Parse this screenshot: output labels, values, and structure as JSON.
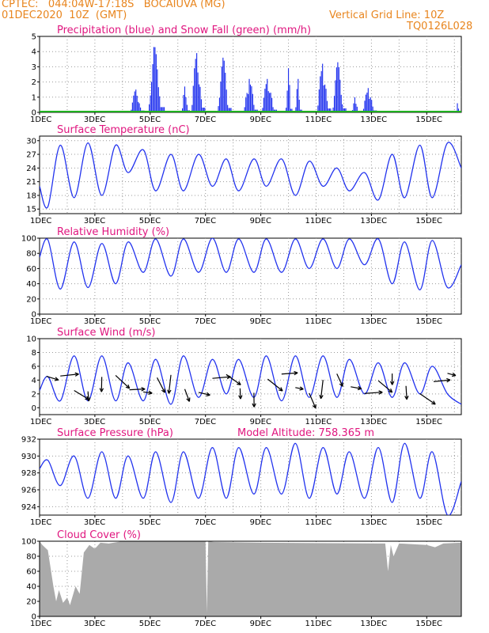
{
  "header": {
    "line1": "CPTEC:   044:04W-17:18S   BOCAIUVA (MG)",
    "line2": "01DEC2020  10Z  (GMT)",
    "grid_note": "Vertical Grid Line: 10Z",
    "code": "TQ0126L028"
  },
  "chart_data": [
    {
      "id": "precip",
      "type": "bar",
      "title": "Precipitation (blue) and Snow Fall (green) (mm/h)",
      "ylim": [
        0,
        5
      ],
      "yticks": [
        "0",
        "1",
        "2",
        "3",
        "4",
        "5"
      ],
      "x_ticks": [
        "1DEC",
        "3DEC",
        "5DEC",
        "7DEC",
        "9DEC",
        "11DEC",
        "13DEC",
        "15DEC"
      ],
      "x_range_days": [
        0,
        15.25
      ],
      "series": [
        {
          "color": "#2233ee",
          "rain_events": [
            {
              "t0": 3.3,
              "t1": 3.8,
              "peak": 1.5
            },
            {
              "t0": 3.95,
              "t1": 4.55,
              "peak": 4.3
            },
            {
              "t0": 5.15,
              "t1": 5.45,
              "peak": 1.7
            },
            {
              "t0": 5.5,
              "t1": 6.0,
              "peak": 3.9
            },
            {
              "t0": 6.45,
              "t1": 6.95,
              "peak": 3.6
            },
            {
              "t0": 7.4,
              "t1": 7.9,
              "peak": 2.2
            },
            {
              "t0": 8.05,
              "t1": 8.6,
              "peak": 2.2
            },
            {
              "t0": 8.9,
              "t1": 9.15,
              "peak": 2.9
            },
            {
              "t0": 9.25,
              "t1": 9.5,
              "peak": 2.2
            },
            {
              "t0": 10.05,
              "t1": 10.55,
              "peak": 3.2
            },
            {
              "t0": 10.6,
              "t1": 11.1,
              "peak": 3.3
            },
            {
              "t0": 11.3,
              "t1": 11.6,
              "peak": 1.0
            },
            {
              "t0": 11.7,
              "t1": 12.2,
              "peak": 1.6
            },
            {
              "t0": 15.05,
              "t1": 15.2,
              "peak": 0.6
            }
          ]
        },
        {
          "color": "#1fb01f",
          "snow_level": 0.05
        }
      ]
    },
    {
      "id": "temp",
      "type": "line",
      "title": "Surface Temperature (nC)",
      "ylim": [
        14,
        31
      ],
      "yticks": [
        "15",
        "18",
        "21",
        "24",
        "27",
        "30"
      ],
      "color": "#2233ee",
      "x": [
        0,
        0.3,
        0.75,
        1.25,
        1.75,
        2.25,
        2.75,
        3.2,
        3.75,
        4.2,
        4.75,
        5.2,
        5.75,
        6.25,
        6.75,
        7.2,
        7.75,
        8.2,
        8.75,
        9.25,
        9.75,
        10.25,
        10.75,
        11.2,
        11.75,
        12.25,
        12.75,
        13.2,
        13.75,
        14.2,
        14.75,
        15.25
      ],
      "values": [
        20,
        15.5,
        29,
        17.5,
        29.5,
        18,
        29,
        23,
        28,
        19,
        27,
        19,
        27,
        20,
        26,
        19,
        26,
        20,
        26,
        18,
        25.5,
        20,
        24,
        19,
        23,
        17,
        27,
        17.5,
        29,
        17.5,
        29.5,
        24
      ]
    },
    {
      "id": "rh",
      "type": "line",
      "title": "Relative Humidity (%)",
      "ylim": [
        0,
        100
      ],
      "yticks": [
        "0",
        "20",
        "40",
        "60",
        "80",
        "100"
      ],
      "color": "#2233ee",
      "x": [
        0,
        0.3,
        0.75,
        1.25,
        1.75,
        2.25,
        2.75,
        3.2,
        3.75,
        4.2,
        4.75,
        5.2,
        5.75,
        6.25,
        6.75,
        7.2,
        7.75,
        8.2,
        8.75,
        9.25,
        9.75,
        10.25,
        10.75,
        11.2,
        11.75,
        12.25,
        12.75,
        13.2,
        13.75,
        14.2,
        14.75,
        15.25
      ],
      "values": [
        75,
        98,
        33,
        95,
        35,
        93,
        40,
        95,
        55,
        99,
        50,
        99,
        55,
        100,
        55,
        99,
        55,
        99,
        55,
        99,
        60,
        99,
        60,
        99,
        65,
        99,
        40,
        95,
        32,
        97,
        35,
        65
      ]
    },
    {
      "id": "wind",
      "type": "line",
      "title": "Surface Wind (m/s)",
      "ylim": [
        -1,
        10
      ],
      "yticks": [
        "0",
        "2",
        "4",
        "6",
        "8",
        "10"
      ],
      "color": "#2233ee",
      "x": [
        0,
        0.3,
        0.75,
        1.25,
        1.75,
        2.25,
        2.75,
        3.2,
        3.75,
        4.2,
        4.75,
        5.2,
        5.75,
        6.25,
        6.75,
        7.2,
        7.75,
        8.2,
        8.75,
        9.25,
        9.75,
        10.25,
        10.75,
        11.2,
        11.75,
        12.25,
        12.75,
        13.2,
        13.75,
        14.2,
        14.75,
        15.25
      ],
      "values": [
        2.5,
        4.5,
        1.0,
        7.5,
        1.0,
        7.5,
        1.0,
        6.5,
        1.0,
        7.0,
        0.5,
        7.5,
        1.5,
        7.0,
        2.0,
        7.0,
        1.5,
        7.5,
        1.0,
        7.5,
        1.5,
        7.5,
        1.5,
        7.0,
        2.0,
        6.5,
        1.5,
        6.5,
        2.0,
        6.0,
        2.0,
        0.5
      ]
    },
    {
      "id": "pres",
      "type": "line",
      "title": "Surface Pressure (hPa)",
      "annotation": "Model Altitude: 758.365 m",
      "ylim": [
        923,
        932
      ],
      "yticks": [
        "924",
        "926",
        "928",
        "930",
        "932"
      ],
      "color": "#2233ee",
      "x": [
        0,
        0.3,
        0.75,
        1.25,
        1.75,
        2.25,
        2.75,
        3.2,
        3.75,
        4.2,
        4.75,
        5.2,
        5.75,
        6.25,
        6.75,
        7.2,
        7.75,
        8.2,
        8.75,
        9.25,
        9.75,
        10.25,
        10.75,
        11.2,
        11.75,
        12.25,
        12.75,
        13.2,
        13.75,
        14.2,
        14.75,
        15.25
      ],
      "values": [
        928.5,
        929.5,
        926.5,
        930,
        925,
        930.5,
        925,
        930,
        925,
        930.5,
        924.5,
        930.5,
        925,
        931,
        925,
        931,
        925.5,
        931,
        925.5,
        931.5,
        925,
        931,
        925.5,
        930.5,
        925,
        931,
        924.5,
        931.5,
        925,
        930.5,
        923,
        927
      ]
    },
    {
      "id": "cloud",
      "type": "area",
      "title": "Cloud Cover (%)",
      "ylim": [
        0,
        100
      ],
      "yticks": [
        "0",
        "20",
        "40",
        "60",
        "80",
        "100"
      ],
      "color": "#aaaaaa",
      "x": [
        0,
        0.1,
        0.3,
        0.5,
        0.6,
        0.7,
        0.85,
        1.0,
        1.1,
        1.3,
        1.45,
        1.6,
        1.8,
        2.0,
        2.2,
        2.5,
        3.0,
        6.0,
        6.05,
        6.1,
        6.3,
        8.0,
        12.5,
        12.6,
        12.7,
        12.8,
        13.0,
        14.0,
        14.3,
        14.6,
        15.25
      ],
      "values": [
        100,
        95,
        88,
        40,
        20,
        35,
        18,
        25,
        15,
        40,
        30,
        85,
        95,
        90,
        98,
        97,
        100,
        100,
        5,
        100,
        99,
        98,
        97,
        60,
        95,
        80,
        97,
        95,
        92,
        97,
        98
      ]
    }
  ]
}
